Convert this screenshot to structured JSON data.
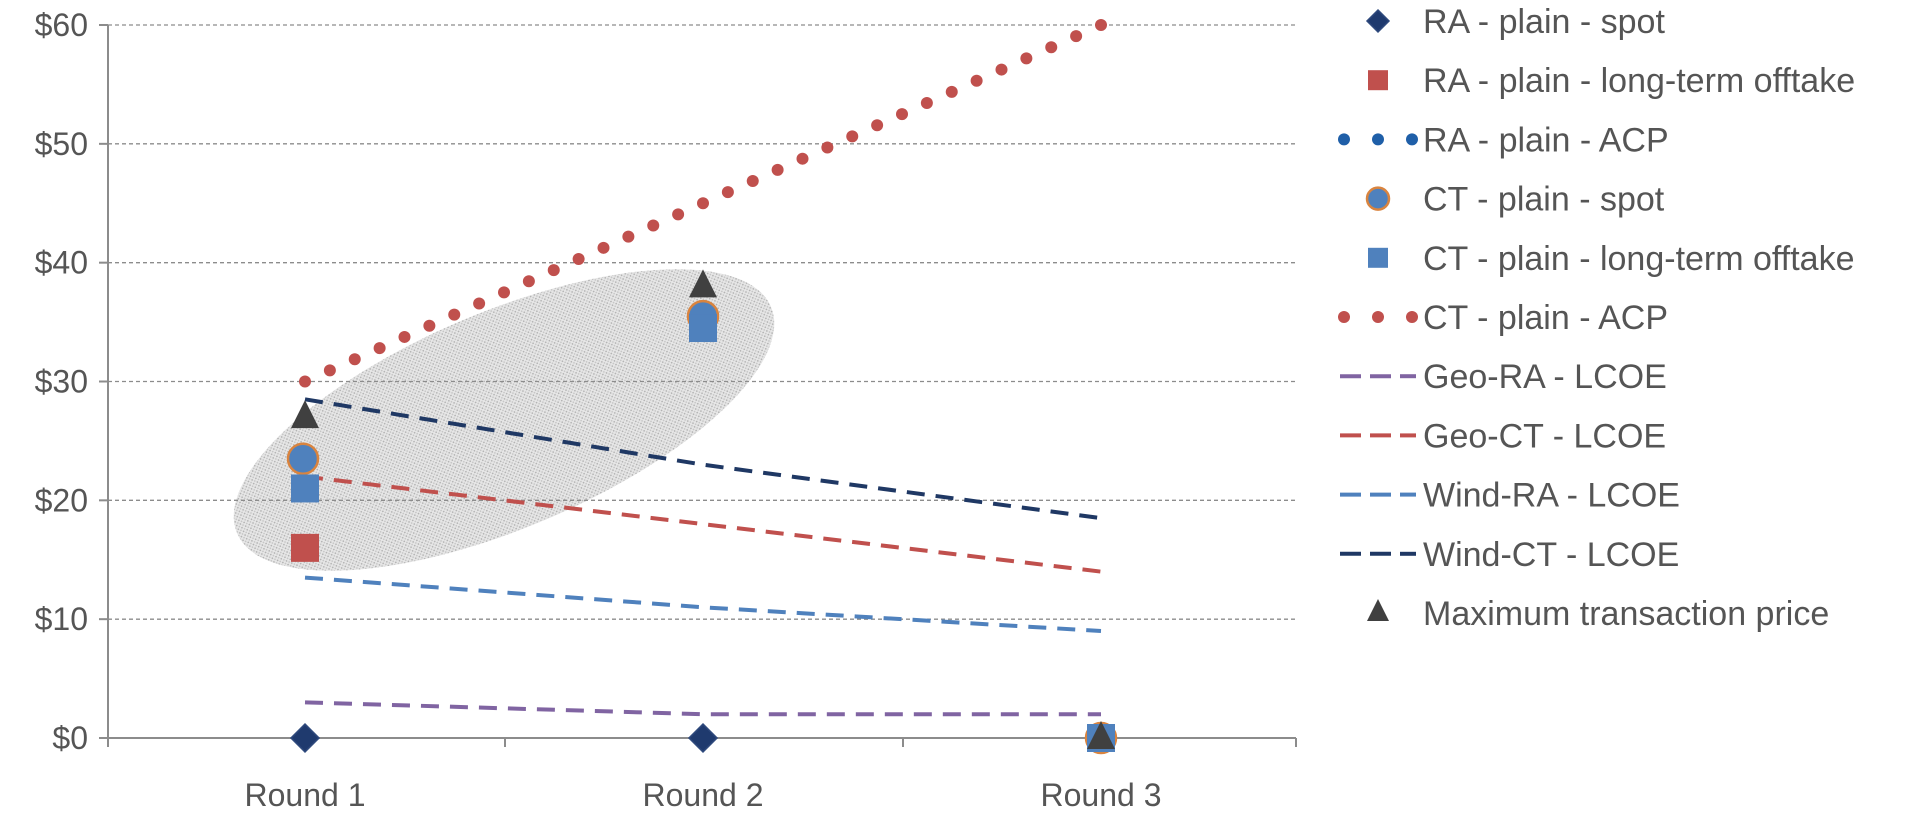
{
  "chart_data": {
    "type": "line",
    "title": "",
    "xlabel": "",
    "ylabel": "",
    "categories": [
      "Round 1",
      "Round 2",
      "Round 3"
    ],
    "ylim": [
      0,
      60
    ],
    "yticks": [
      0,
      10,
      20,
      30,
      40,
      50,
      60
    ],
    "ytick_labels": [
      "$0",
      "$10",
      "$20",
      "$30",
      "$40",
      "$50",
      "$60"
    ],
    "grid": "horizontal dashed",
    "legend_position": "right",
    "annotation": "shaded ellipse around Round 1 and Round 2 points",
    "series": [
      {
        "name": "RA - plain - spot",
        "style": "marker",
        "marker": "diamond",
        "color": "#1f3a6e",
        "values": [
          0,
          0,
          0
        ]
      },
      {
        "name": "RA - plain - long-term offtake",
        "style": "marker",
        "marker": "square",
        "color": "#c0504d",
        "values": [
          16,
          35,
          0
        ]
      },
      {
        "name": "RA - plain - ACP",
        "style": "dotted",
        "marker": "none",
        "color": "#1f5fa8",
        "values": [
          null,
          null,
          null
        ]
      },
      {
        "name": "CT - plain - spot",
        "style": "marker",
        "marker": "circle",
        "color": "#4f81bd",
        "edge": "#d9843f",
        "values": [
          23.5,
          35.5,
          0
        ]
      },
      {
        "name": "CT - plain - long-term offtake",
        "style": "marker",
        "marker": "square",
        "color": "#4f81bd",
        "values": [
          21,
          34.5,
          0
        ]
      },
      {
        "name": "CT - plain - ACP",
        "style": "dotted",
        "marker": "none",
        "color": "#c0504d",
        "values": [
          30,
          45,
          60
        ]
      },
      {
        "name": "Geo-RA - LCOE",
        "style": "dashed",
        "marker": "none",
        "color": "#8064a2",
        "values": [
          3,
          2,
          2
        ]
      },
      {
        "name": "Geo-CT - LCOE",
        "style": "dashed",
        "marker": "none",
        "color": "#c0504d",
        "values": [
          22,
          18,
          14
        ]
      },
      {
        "name": "Wind-RA - LCOE",
        "style": "dashed",
        "marker": "none",
        "color": "#4f81bd",
        "values": [
          13.5,
          11,
          9
        ]
      },
      {
        "name": "Wind-CT - LCOE",
        "style": "dashed",
        "marker": "none",
        "color": "#1f3864",
        "values": [
          28.5,
          23,
          18.5
        ]
      },
      {
        "name": "Maximum transaction price",
        "style": "marker",
        "marker": "triangle",
        "color": "#404040",
        "values": [
          27,
          38,
          0
        ]
      }
    ]
  }
}
